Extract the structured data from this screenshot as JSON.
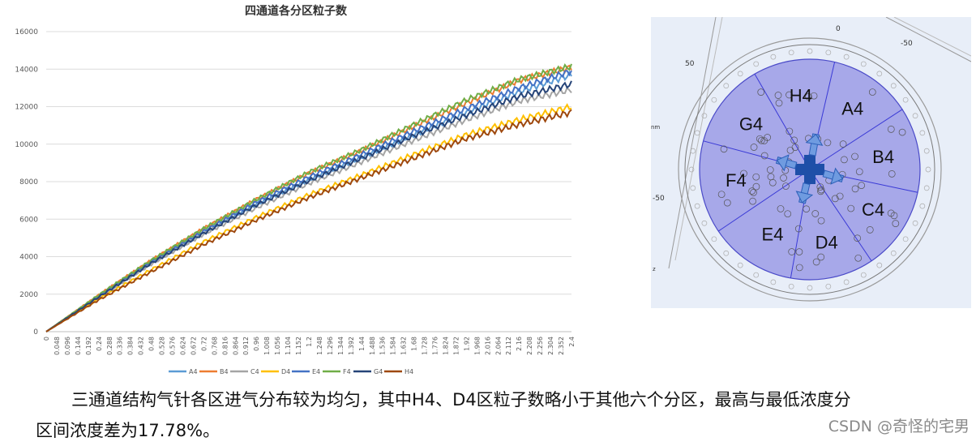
{
  "chart_data": {
    "type": "line",
    "title": "四通道各分区粒子数",
    "xlabel": "",
    "ylabel": "",
    "ylim": [
      0,
      16000
    ],
    "yticks": [
      "0",
      "2000",
      "4000",
      "6000",
      "8000",
      "10000",
      "12000",
      "14000",
      "16000"
    ],
    "x_categories": [
      "0",
      "0.048",
      "0.096",
      "0.144",
      "0.192",
      "0.24",
      "0.288",
      "0.336",
      "0.384",
      "0.432",
      "0.48",
      "0.528",
      "0.576",
      "0.624",
      "0.672",
      "0.72",
      "0.768",
      "0.816",
      "0.864",
      "0.912",
      "0.96",
      "1.008",
      "1.056",
      "1.104",
      "1.152",
      "1.2",
      "1.248",
      "1.296",
      "1.344",
      "1.392",
      "1.44",
      "1.488",
      "1.536",
      "1.584",
      "1.632",
      "1.68",
      "1.728",
      "1.776",
      "1.824",
      "1.872",
      "1.92",
      "1.968",
      "2.016",
      "2.064",
      "2.112",
      "2.16",
      "2.208",
      "2.256",
      "2.304",
      "2.352",
      "2.4"
    ],
    "grid": true,
    "legend_position": "bottom",
    "series": [
      {
        "name": "A4",
        "color": "#5b9bd5",
        "x": [
          0,
          0.24,
          0.48,
          0.72,
          0.96,
          1.2,
          1.44,
          1.68,
          1.92,
          2.16,
          2.4
        ],
        "values": [
          0,
          1900,
          3700,
          5300,
          6800,
          8100,
          9300,
          10500,
          11700,
          12800,
          13700
        ]
      },
      {
        "name": "B4",
        "color": "#ed7d31",
        "x": [
          0,
          0.24,
          0.48,
          0.72,
          0.96,
          1.2,
          1.44,
          1.68,
          1.92,
          2.16,
          2.4
        ],
        "values": [
          0,
          1950,
          3800,
          5500,
          7050,
          8450,
          9650,
          10950,
          12200,
          13400,
          14100
        ]
      },
      {
        "name": "C4",
        "color": "#a5a5a5",
        "x": [
          0,
          0.24,
          0.48,
          0.72,
          0.96,
          1.2,
          1.44,
          1.68,
          1.92,
          2.16,
          2.4
        ],
        "values": [
          0,
          1850,
          3600,
          5200,
          6600,
          7900,
          9050,
          10200,
          11300,
          12300,
          12900
        ]
      },
      {
        "name": "D4",
        "color": "#ffc000",
        "x": [
          0,
          0.24,
          0.48,
          0.72,
          0.96,
          1.2,
          1.44,
          1.68,
          1.92,
          2.16,
          2.4
        ],
        "values": [
          0,
          1750,
          3300,
          4800,
          6100,
          7300,
          8350,
          9450,
          10500,
          11300,
          12000
        ]
      },
      {
        "name": "E4",
        "color": "#4472c4",
        "x": [
          0,
          0.24,
          0.48,
          0.72,
          0.96,
          1.2,
          1.44,
          1.68,
          1.92,
          2.16,
          2.4
        ],
        "values": [
          0,
          1900,
          3700,
          5350,
          6900,
          8250,
          9450,
          10700,
          11900,
          13000,
          13900
        ]
      },
      {
        "name": "F4",
        "color": "#70ad47",
        "x": [
          0,
          0.24,
          0.48,
          0.72,
          0.96,
          1.2,
          1.44,
          1.68,
          1.92,
          2.16,
          2.4
        ],
        "values": [
          0,
          1950,
          3800,
          5500,
          7050,
          8500,
          9700,
          11050,
          12350,
          13450,
          14150
        ]
      },
      {
        "name": "G4",
        "color": "#264478",
        "x": [
          0,
          0.24,
          0.48,
          0.72,
          0.96,
          1.2,
          1.44,
          1.68,
          1.92,
          2.16,
          2.4
        ],
        "values": [
          0,
          1850,
          3650,
          5250,
          6750,
          8050,
          9250,
          10450,
          11550,
          12550,
          13200
        ]
      },
      {
        "name": "H4",
        "color": "#9e480e",
        "x": [
          0,
          0.24,
          0.48,
          0.72,
          0.96,
          1.2,
          1.44,
          1.68,
          1.92,
          2.16,
          2.4
        ],
        "values": [
          0,
          1700,
          3200,
          4650,
          5950,
          7150,
          8200,
          9250,
          10300,
          11050,
          11700
        ]
      }
    ]
  },
  "diagram": {
    "zones": [
      {
        "label": "H4",
        "angle": -97
      },
      {
        "label": "A4",
        "angle": -55
      },
      {
        "label": "B4",
        "angle": -10
      },
      {
        "label": "C4",
        "angle": 32
      },
      {
        "label": "D4",
        "angle": 77
      },
      {
        "label": "E4",
        "angle": 120
      },
      {
        "label": "F4",
        "angle": 172
      },
      {
        "label": "G4",
        "angle": -142
      }
    ],
    "axis_labels": {
      "top0": "0",
      "top_m50": "-50",
      "left50": "50",
      "left_m50": "-50",
      "unit": "nm",
      "z": "z"
    },
    "fill_color": "#9b9be6",
    "arrow_color": "#2c5fb8"
  },
  "caption": {
    "line1": "三通道结构气针各区进气分布较为均匀，其中H4、D4区粒子数略小于其他六个分区，最高与最低浓度分",
    "line2": "区间浓度差为17.78%。"
  },
  "watermark": "CSDN @奇怪的宅男"
}
